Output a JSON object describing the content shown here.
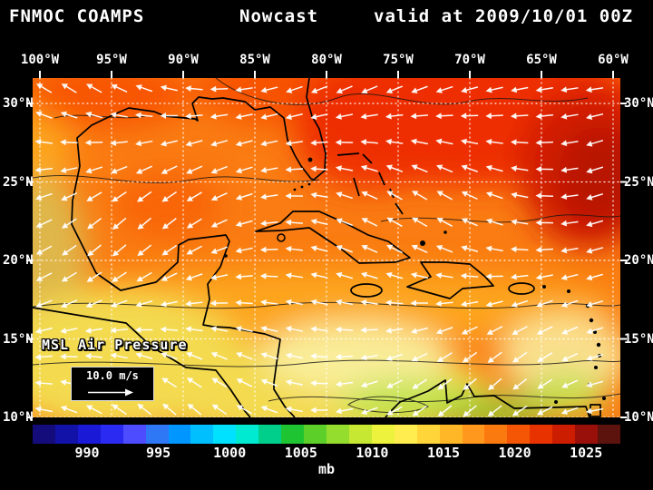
{
  "header": {
    "model": "FNMOC COAMPS",
    "product": "Nowcast",
    "valid_text": "valid at 2009/10/01 00Z"
  },
  "axes": {
    "lon_labels": [
      "100°W",
      "95°W",
      "90°W",
      "85°W",
      "80°W",
      "75°W",
      "70°W",
      "65°W",
      "60°W"
    ],
    "lat_labels_left": [
      "30°N",
      "25°N",
      "20°N",
      "15°N",
      "10°N"
    ],
    "lat_labels_right": [
      "30°N",
      "25°N",
      "20°N",
      "15°N",
      "10°N"
    ]
  },
  "overlay": {
    "field_label": "MSL Air Pressure",
    "wind_scale_label": "10.0 m/s"
  },
  "colorbar": {
    "unit": "mb",
    "tick_labels": [
      "990",
      "995",
      "1000",
      "1005",
      "1010",
      "1015",
      "1020",
      "1025"
    ],
    "cell_colors": [
      "#150c7c",
      "#1212a8",
      "#1a1ad6",
      "#2a2af2",
      "#4d4dff",
      "#2e78f5",
      "#0096ff",
      "#00bfff",
      "#00e0ff",
      "#00ead2",
      "#00cf8c",
      "#1fc432",
      "#5ccf29",
      "#94dd2e",
      "#c6e832",
      "#edf23c",
      "#ffec4f",
      "#ffd53a",
      "#ffb627",
      "#ff981c",
      "#fb7a10",
      "#f45606",
      "#e83300",
      "#cc1d00",
      "#99100a",
      "#5c130e"
    ]
  },
  "map_palette": {
    "base": "#fa7c12",
    "red": "#ee2e00",
    "deep_red": "#d11b00",
    "darker_red": "#b51500",
    "orange_red": "#f75200",
    "yellow_orange": "#fda81c",
    "yellow": "#f3da50",
    "pale_yellow": "#f9f0a2",
    "khaki": "#ddb94e",
    "yellow_green": "#c3e24b",
    "green": "#8ccf33",
    "grid": "#ffffff",
    "coast": "#000000",
    "arrow": "#ffffff"
  }
}
